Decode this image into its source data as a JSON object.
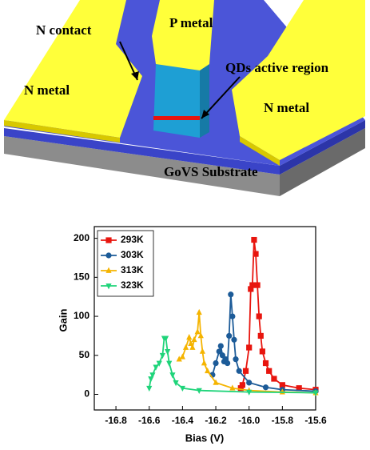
{
  "diagram": {
    "labels": {
      "n_contact": "N contact",
      "p_metal": "P metal",
      "qds": "QDs active region",
      "n_metal_left": "N metal",
      "n_metal_right": "N metal",
      "substrate": "GoVS Substrate"
    }
  },
  "chart_data": {
    "type": "line",
    "xlabel": "Bias (V)",
    "ylabel": "Gain",
    "xlim": [
      -16.93,
      -15.6
    ],
    "ylim": [
      -20,
      215
    ],
    "xticks": [
      -16.8,
      -16.6,
      -16.4,
      -16.2,
      {
        "value": -16,
        "label": "-16.0"
      },
      -15.8,
      -15.6
    ],
    "yticks": [
      0,
      50,
      100,
      150,
      200
    ],
    "legend": "upper left",
    "series": [
      {
        "name": "293K",
        "color": "#e8150e",
        "marker": "square",
        "x": [
          -16.05,
          -16.04,
          -16.02,
          -16.0,
          -15.99,
          -15.98,
          -15.97,
          -15.96,
          -15.95,
          -15.94,
          -15.93,
          -15.92,
          -15.9,
          -15.88,
          -15.85,
          -15.8,
          -15.7,
          -15.6
        ],
        "values": [
          8,
          12,
          30,
          60,
          135,
          140,
          198,
          180,
          140,
          100,
          75,
          55,
          40,
          30,
          20,
          12,
          8,
          6
        ]
      },
      {
        "name": "303K",
        "color": "#1c5b98",
        "marker": "circle",
        "x": [
          -16.22,
          -16.2,
          -16.18,
          -16.17,
          -16.16,
          -16.15,
          -16.14,
          -16.13,
          -16.12,
          -16.11,
          -16.1,
          -16.09,
          -16.08,
          -16.06,
          -16.0,
          -15.9,
          -15.8,
          -15.6
        ],
        "values": [
          25,
          40,
          55,
          62,
          50,
          42,
          45,
          40,
          75,
          128,
          100,
          70,
          45,
          30,
          15,
          9,
          6,
          4
        ]
      },
      {
        "name": "313K",
        "color": "#f5b400",
        "marker": "triangle-up",
        "x": [
          -16.42,
          -16.4,
          -16.38,
          -16.36,
          -16.35,
          -16.34,
          -16.33,
          -16.31,
          -16.3,
          -16.29,
          -16.28,
          -16.27,
          -16.25,
          -16.2,
          -16.1,
          -16.0,
          -15.8,
          -15.6
        ],
        "values": [
          45,
          48,
          60,
          73,
          65,
          60,
          70,
          80,
          105,
          75,
          55,
          40,
          30,
          15,
          8,
          5,
          3,
          2
        ]
      },
      {
        "name": "323K",
        "color": "#1fd47a",
        "marker": "triangle-down",
        "x": [
          -16.6,
          -16.59,
          -16.58,
          -16.56,
          -16.54,
          -16.52,
          -16.51,
          -16.5,
          -16.49,
          -16.48,
          -16.46,
          -16.44,
          -16.4,
          -16.3,
          -16.0,
          -15.6
        ],
        "values": [
          8,
          20,
          25,
          35,
          40,
          50,
          72,
          72,
          55,
          40,
          25,
          15,
          8,
          5,
          3,
          2
        ]
      }
    ]
  }
}
